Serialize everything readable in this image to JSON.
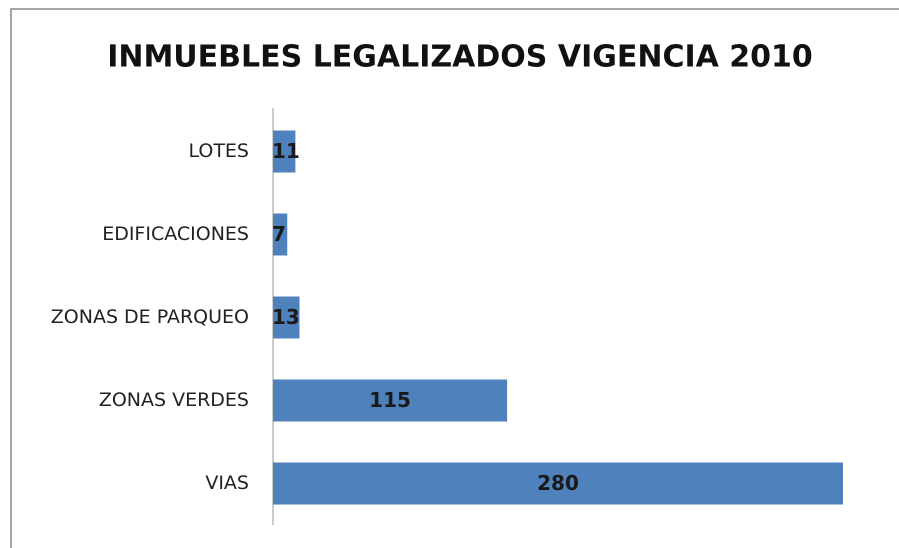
{
  "chart_data": {
    "type": "hbar",
    "title": "INMUEBLES LEGALIZADOS VIGENCIA 2010",
    "categories": [
      "LOTES",
      "EDIFICACIONES",
      "ZONAS DE PARQUEO",
      "ZONAS VERDES",
      "VIAS"
    ],
    "values": [
      11,
      7,
      13,
      115,
      280
    ],
    "color": "#4f81bd"
  }
}
